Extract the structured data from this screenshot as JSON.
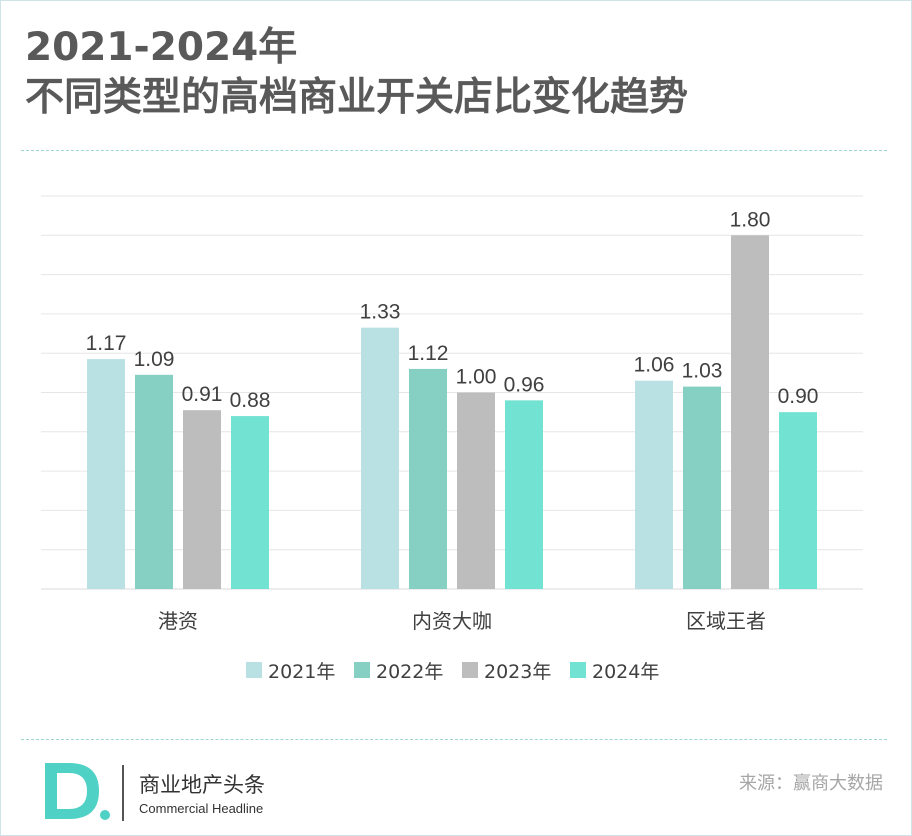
{
  "title": {
    "line1": "2021-2024年",
    "line2": "不同类型的高档商业开关店比变化趋势"
  },
  "colors": {
    "title": "#595959",
    "text": "#404040",
    "grid": "#e6e6e6",
    "separator": "#9fd6cf",
    "logo": "#4fd1c5"
  },
  "chart_data": {
    "type": "bar",
    "categories": [
      "港资",
      "内资大咖",
      "区域王者"
    ],
    "series": [
      {
        "name": "2021年",
        "values": [
          1.17,
          1.33,
          1.06
        ],
        "color": "#b9e1e3"
      },
      {
        "name": "2022年",
        "values": [
          1.09,
          1.12,
          1.03
        ],
        "color": "#85d0c2"
      },
      {
        "name": "2023年",
        "values": [
          0.91,
          1.0,
          1.8
        ],
        "color": "#bdbdbd"
      },
      {
        "name": "2024年",
        "values": [
          0.88,
          0.96,
          0.9
        ],
        "color": "#72e2d2"
      }
    ],
    "ylim": [
      0,
      2.0
    ],
    "grid": true,
    "legend_position": "bottom",
    "data_labels": [
      "1.17",
      "1.09",
      "0.91",
      "0.88",
      "1.33",
      "1.12",
      "1.00",
      "0.96",
      "1.06",
      "1.03",
      "1.80",
      "0.90"
    ]
  },
  "footer": {
    "logo_text": "D.",
    "brand_cn": "商业地产头条",
    "brand_en": "Commercial Headline",
    "source": "来源：赢商大数据"
  }
}
